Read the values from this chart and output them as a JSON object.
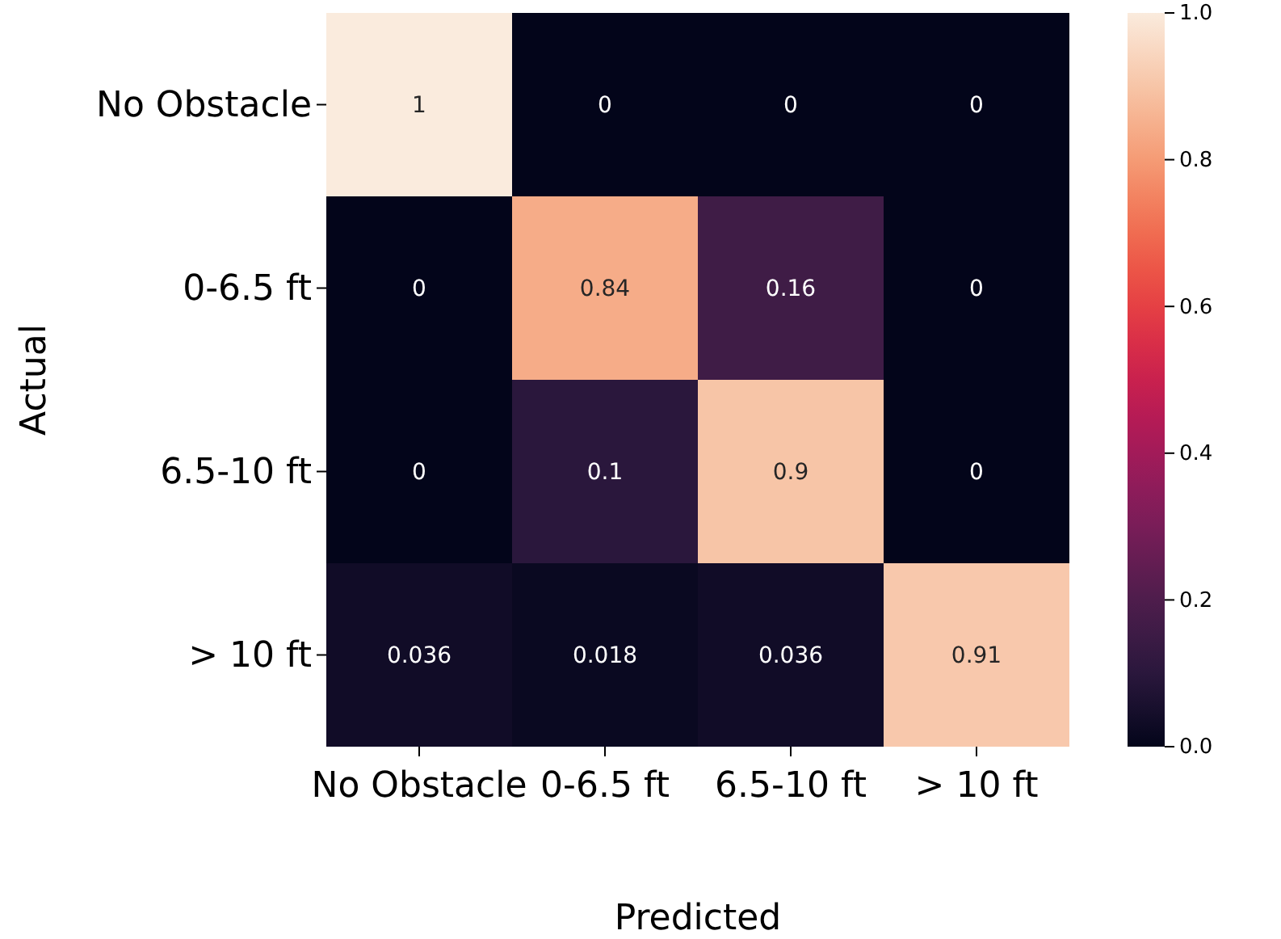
{
  "chart_data": {
    "type": "heatmap",
    "xlabel": "Predicted",
    "ylabel": "Actual",
    "categories": [
      "No Obstacle",
      "0-6.5 ft",
      "6.5-10 ft",
      "> 10 ft"
    ],
    "y_categories": [
      "No Obstacle",
      "0-6.5 ft",
      "6.5-10 ft",
      "> 10 ft"
    ],
    "cells": [
      [
        1,
        0,
        0,
        0
      ],
      [
        0,
        0.84,
        0.16,
        0
      ],
      [
        0,
        0.1,
        0.9,
        0
      ],
      [
        0.036,
        0.018,
        0.036,
        0.91
      ]
    ],
    "clim": [
      0.0,
      1.0
    ],
    "cticks": [
      {
        "value": 0,
        "label": "0.0"
      },
      {
        "value": 0.2,
        "label": "0.2"
      },
      {
        "value": 0.4,
        "label": "0.4"
      },
      {
        "value": 0.6,
        "label": "0.6"
      },
      {
        "value": 0.8,
        "label": "0.8"
      },
      {
        "value": 1,
        "label": "1.0"
      }
    ],
    "data_labels": true
  }
}
